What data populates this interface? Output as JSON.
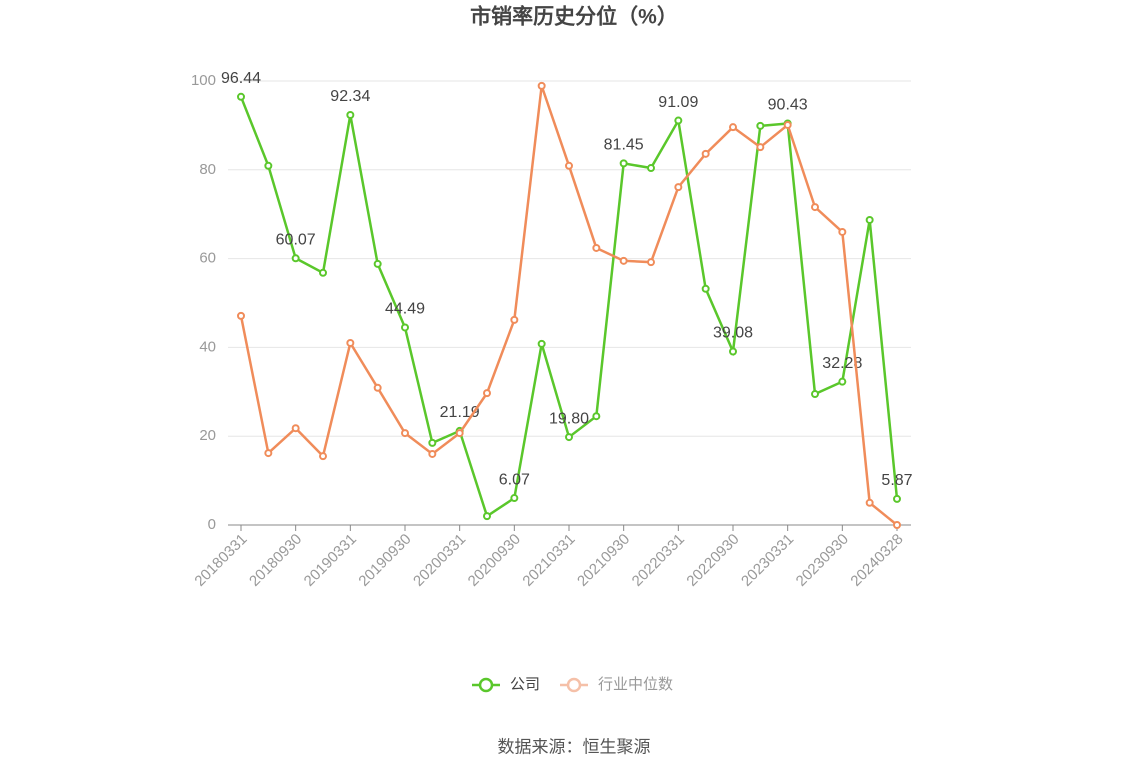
{
  "chart_data": {
    "type": "line",
    "title": "市销率历史分位（%）",
    "source": "数据来源：恒生聚源",
    "categories": [
      "20180331",
      null,
      "20180930",
      null,
      "20190331",
      null,
      "20190930",
      null,
      "20200331",
      null,
      "20200930",
      null,
      "20210331",
      null,
      "20210930",
      null,
      "20220331",
      null,
      "20220930",
      null,
      "20230331",
      null,
      "20230930",
      null,
      "20240328"
    ],
    "series": [
      {
        "name": "公司",
        "color": "#5ac72b",
        "values": [
          96.44,
          80.9,
          60.07,
          56.8,
          92.34,
          58.8,
          44.49,
          18.5,
          21.19,
          2.0,
          6.07,
          40.8,
          19.8,
          24.5,
          81.45,
          80.4,
          91.09,
          53.2,
          39.08,
          89.9,
          90.43,
          29.5,
          32.28,
          68.7,
          5.87
        ],
        "value_labels": [
          "96.44",
          null,
          "60.07",
          null,
          "92.34",
          null,
          "44.49",
          null,
          "21.19",
          null,
          "6.07",
          null,
          "19.80",
          null,
          "81.45",
          null,
          "91.09",
          null,
          "39.08",
          null,
          "90.43",
          null,
          "32.28",
          null,
          "5.87"
        ]
      },
      {
        "name": "行业中位数",
        "color": "#f08c5a",
        "legend_color": "#f5c0a8",
        "values": [
          47.1,
          16.2,
          21.8,
          15.5,
          41.0,
          30.9,
          20.7,
          16.0,
          20.7,
          29.7,
          46.2,
          98.9,
          80.9,
          62.4,
          59.5,
          59.2,
          76.1,
          83.6,
          89.6,
          85.1,
          90.1,
          71.6,
          66.0,
          5.0,
          0
        ]
      }
    ],
    "ylim": [
      0,
      100
    ],
    "yticks": [
      0,
      20,
      40,
      60,
      80,
      100
    ],
    "grid": true,
    "legend": "bottom"
  }
}
